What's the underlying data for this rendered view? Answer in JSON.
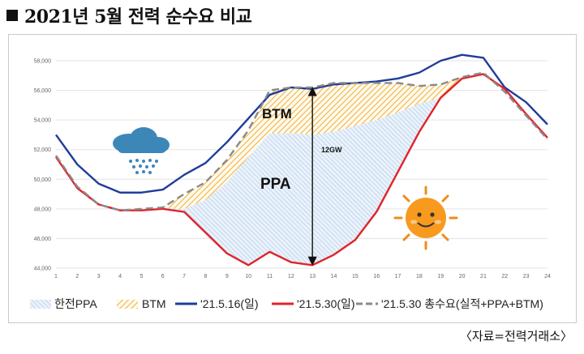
{
  "title": "2021년 5월 전력 순수요 비교",
  "source": "〈자료=전력거래소〉",
  "chart_data": {
    "type": "line",
    "x": [
      1,
      2,
      3,
      4,
      5,
      6,
      7,
      8,
      9,
      10,
      11,
      12,
      13,
      14,
      15,
      16,
      17,
      18,
      19,
      20,
      21,
      22,
      23,
      24
    ],
    "ylim": [
      44000,
      58000
    ],
    "yticks": [
      "44,000",
      "46,000",
      "48,000",
      "50,000",
      "52,000",
      "54,000",
      "56,000",
      "58,000"
    ],
    "ytick_values": [
      44000,
      46000,
      48000,
      50000,
      52000,
      54000,
      56000,
      58000
    ],
    "series": [
      {
        "name": "'21.5.16(일)",
        "color": "#1f3c9a",
        "values": [
          53000,
          51000,
          49700,
          49100,
          49100,
          49300,
          50300,
          51100,
          52500,
          54100,
          55700,
          56200,
          56100,
          56400,
          56500,
          56600,
          56800,
          57200,
          58000,
          58400,
          58200,
          56200,
          55200,
          53700
        ]
      },
      {
        "name": "'21.5.30(일)",
        "color": "#e0242a",
        "values": [
          51500,
          49400,
          48300,
          47900,
          47900,
          48000,
          47800,
          46400,
          45000,
          44200,
          45100,
          44400,
          44200,
          44900,
          45900,
          47800,
          50500,
          53200,
          55500,
          56800,
          57100,
          56100,
          54400,
          52800
        ]
      },
      {
        "name": "'21.5.30 총수요(실적+PPA+BTM)",
        "color": "#8a8a8a",
        "values": [
          51600,
          49500,
          48300,
          47900,
          48000,
          48100,
          49000,
          49800,
          51300,
          53300,
          56000,
          56200,
          56200,
          56500,
          56500,
          56500,
          56500,
          56300,
          56400,
          56900,
          57200,
          55900,
          54300,
          52700
        ]
      },
      {
        "name": "BTM",
        "values": [
          null,
          null,
          null,
          null,
          null,
          null,
          49000,
          49800,
          51300,
          53300,
          56000,
          56200,
          56200,
          56500,
          56500,
          56500,
          56500,
          56300,
          56400,
          56900,
          null,
          null,
          null,
          null
        ]
      },
      {
        "name": "한전PPA",
        "values": [
          null,
          null,
          null,
          null,
          null,
          null,
          48000,
          48600,
          49800,
          51500,
          53100,
          53100,
          53000,
          53200,
          53600,
          54000,
          54500,
          55100,
          55500,
          56800,
          null,
          null,
          null,
          null
        ]
      }
    ],
    "legend": [
      "한전PPA",
      "BTM",
      "'21.5.16(일)",
      "'21.5.30(일)",
      "'21.5.30 총수요(실적+PPA+BTM)"
    ],
    "annotations": {
      "btm": "BTM",
      "ppa": "PPA",
      "gap": "12GW"
    },
    "legend_position": "bottom"
  }
}
